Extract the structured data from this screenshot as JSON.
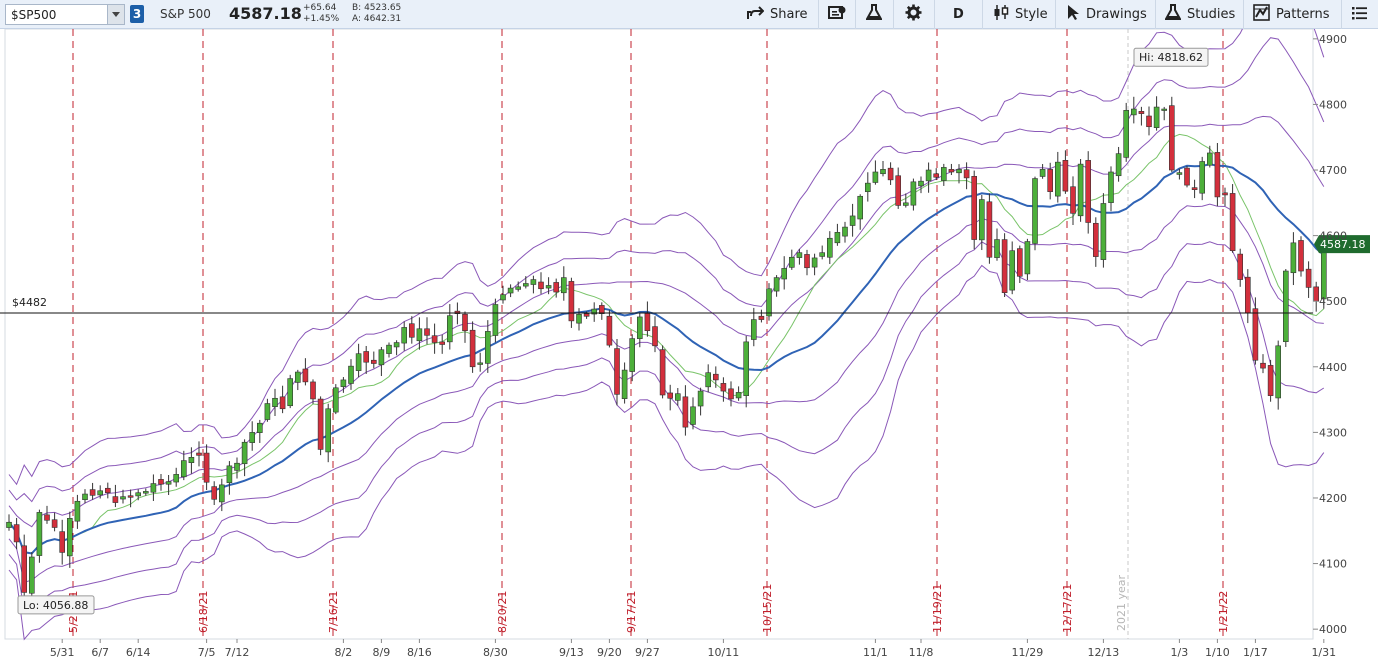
{
  "toolbar": {
    "symbol": "$SP500",
    "layout_badge": "3",
    "description": "S&P 500",
    "last": "4587.18",
    "change": "+65.64",
    "change_pct": "+1.45%",
    "bid": "B: 4523.65",
    "ask": "A: 4642.31",
    "share_label": "Share",
    "period_label": "D",
    "style_label": "Style",
    "drawings_label": "Drawings",
    "studies_label": "Studies",
    "patterns_label": "Patterns",
    "icons": [
      "share-icon",
      "news-icon",
      "flask-icon",
      "gear-icon",
      "candlestick-icon",
      "cursor-icon",
      "studies-flask-icon",
      "patterns-icon",
      "menu-icon"
    ]
  },
  "chart_data": {
    "type": "candlestick",
    "y_ticks": [
      "4900",
      "4800",
      "4700",
      "4600",
      "4500",
      "4400",
      "4300",
      "4200",
      "4100",
      "4000"
    ],
    "ylim": [
      3985,
      4915
    ],
    "x_ticks": [
      "5/31",
      "6/7",
      "6/14",
      "7/5",
      "7/12",
      "8/2",
      "8/9",
      "8/16",
      "8/30",
      "9/13",
      "9/20",
      "9/27",
      "10/11",
      "11/1",
      "11/8",
      "11/29",
      "12/13",
      "1/3",
      "1/10",
      "1/17",
      "1/31"
    ],
    "expiration_lines": [
      "5/21/21",
      "6/18/21",
      "7/16/21",
      "8/20/21",
      "9/17/21",
      "10/15/21",
      "11/19/21",
      "12/17/21",
      "1/21/22"
    ],
    "year_marker": "2021 year",
    "horizontal_line": {
      "label": "$4482",
      "value": 4482
    },
    "hi_label": "Hi: 4818.62",
    "lo_label": "Lo: 4056.88",
    "hi": 4818.62,
    "lo": 4056.88,
    "last_price_label": "4587.18",
    "colors": {
      "up": "#4caf3a",
      "down": "#d32f3c",
      "ma_fast": "#7ac46a",
      "ma_slow": "#2f63b5",
      "bands": "#8a58b8",
      "expiry": "#c0202c",
      "last": "#1f6b2e"
    },
    "series": [
      {
        "points": [
          [
            0,
            4163
          ],
          [
            1,
            4133
          ],
          [
            2,
            4056
          ],
          [
            3,
            4110
          ],
          [
            4,
            4178
          ],
          [
            5,
            4166
          ],
          [
            6,
            4155
          ],
          [
            7,
            4117
          ],
          [
            8,
            4169
          ],
          [
            9,
            4195
          ],
          [
            10,
            4206
          ],
          [
            11,
            4204
          ],
          [
            12,
            4211
          ],
          [
            13,
            4208
          ],
          [
            14,
            4193
          ],
          [
            15,
            4202
          ],
          [
            16,
            4201
          ],
          [
            17,
            4208
          ],
          [
            18,
            4210
          ],
          [
            19,
            4222
          ],
          [
            20,
            4221
          ],
          [
            21,
            4225
          ],
          [
            22,
            4236
          ],
          [
            23,
            4257
          ],
          [
            24,
            4262
          ],
          [
            25,
            4265
          ],
          [
            26,
            4224
          ],
          [
            27,
            4198
          ],
          [
            28,
            4220
          ],
          [
            29,
            4249
          ],
          [
            30,
            4253
          ],
          [
            31,
            4285
          ],
          [
            32,
            4300
          ],
          [
            33,
            4314
          ],
          [
            34,
            4344
          ],
          [
            35,
            4352
          ],
          [
            36,
            4336
          ],
          [
            37,
            4382
          ],
          [
            38,
            4392
          ],
          [
            39,
            4377
          ],
          [
            40,
            4351
          ],
          [
            41,
            4274
          ],
          [
            42,
            4336
          ],
          [
            43,
            4368
          ],
          [
            44,
            4380
          ],
          [
            45,
            4401
          ],
          [
            46,
            4420
          ],
          [
            47,
            4407
          ],
          [
            48,
            4405
          ],
          [
            49,
            4426
          ],
          [
            50,
            4433
          ],
          [
            51,
            4437
          ],
          [
            52,
            4460
          ],
          [
            53,
            4445
          ],
          [
            54,
            4458
          ],
          [
            55,
            4448
          ],
          [
            56,
            4437
          ],
          [
            57,
            4434
          ],
          [
            58,
            4478
          ],
          [
            59,
            4481
          ],
          [
            60,
            4455
          ],
          [
            61,
            4400
          ],
          [
            62,
            4406
          ],
          [
            63,
            4454
          ],
          [
            64,
            4495
          ],
          [
            65,
            4510
          ],
          [
            66,
            4520
          ],
          [
            67,
            4522
          ],
          [
            68,
            4527
          ],
          [
            69,
            4533
          ],
          [
            70,
            4519
          ],
          [
            71,
            4524
          ],
          [
            72,
            4514
          ],
          [
            73,
            4536
          ],
          [
            74,
            4470
          ],
          [
            75,
            4480
          ],
          [
            76,
            4477
          ],
          [
            77,
            4488
          ],
          [
            78,
            4481
          ],
          [
            79,
            4433
          ],
          [
            80,
            4358
          ],
          [
            81,
            4395
          ],
          [
            82,
            4443
          ],
          [
            83,
            4476
          ],
          [
            84,
            4455
          ],
          [
            85,
            4432
          ],
          [
            86,
            4357
          ],
          [
            87,
            4352
          ],
          [
            88,
            4359
          ],
          [
            89,
            4308
          ],
          [
            90,
            4339
          ],
          [
            91,
            4363
          ],
          [
            92,
            4391
          ],
          [
            93,
            4380
          ],
          [
            94,
            4363
          ],
          [
            95,
            4351
          ],
          [
            96,
            4361
          ],
          [
            97,
            4438
          ],
          [
            98,
            4472
          ],
          [
            99,
            4472
          ],
          [
            100,
            4519
          ],
          [
            101,
            4536
          ],
          [
            102,
            4550
          ],
          [
            103,
            4567
          ],
          [
            104,
            4574
          ],
          [
            105,
            4551
          ],
          [
            106,
            4566
          ],
          [
            107,
            4574
          ],
          [
            108,
            4596
          ],
          [
            109,
            4605
          ],
          [
            110,
            4613
          ],
          [
            111,
            4630
          ],
          [
            112,
            4660
          ],
          [
            113,
            4680
          ],
          [
            114,
            4697
          ],
          [
            115,
            4701
          ],
          [
            116,
            4685
          ],
          [
            117,
            4646
          ],
          [
            118,
            4650
          ],
          [
            119,
            4682
          ],
          [
            120,
            4683
          ],
          [
            121,
            4700
          ],
          [
            122,
            4689
          ],
          [
            123,
            4704
          ],
          [
            124,
            4697
          ],
          [
            125,
            4701
          ],
          [
            126,
            4688
          ],
          [
            127,
            4594
          ],
          [
            128,
            4655
          ],
          [
            129,
            4567
          ],
          [
            130,
            4594
          ],
          [
            131,
            4513
          ],
          [
            132,
            4577
          ],
          [
            133,
            4538
          ],
          [
            134,
            4591
          ],
          [
            135,
            4687
          ],
          [
            136,
            4701
          ],
          [
            137,
            4667
          ],
          [
            138,
            4712
          ],
          [
            139,
            4668
          ],
          [
            140,
            4634
          ],
          [
            141,
            4709
          ],
          [
            142,
            4620
          ],
          [
            143,
            4568
          ],
          [
            144,
            4649
          ],
          [
            145,
            4697
          ],
          [
            146,
            4725
          ],
          [
            147,
            4791
          ],
          [
            148,
            4793
          ],
          [
            149,
            4786
          ],
          [
            150,
            4766
          ],
          [
            151,
            4796
          ],
          [
            152,
            4793
          ],
          [
            153,
            4700
          ],
          [
            154,
            4696
          ],
          [
            155,
            4677
          ],
          [
            156,
            4670
          ],
          [
            157,
            4713
          ],
          [
            158,
            4726
          ],
          [
            159,
            4659
          ],
          [
            160,
            4662
          ],
          [
            161,
            4577
          ],
          [
            162,
            4533
          ],
          [
            163,
            4482
          ],
          [
            164,
            4410
          ],
          [
            165,
            4398
          ],
          [
            166,
            4356
          ],
          [
            167,
            4432
          ],
          [
            168,
            4546
          ],
          [
            169,
            4589
          ],
          [
            170,
            4546
          ],
          [
            171,
            4521
          ],
          [
            172,
            4500
          ],
          [
            173,
            4587
          ]
        ]
      }
    ]
  }
}
